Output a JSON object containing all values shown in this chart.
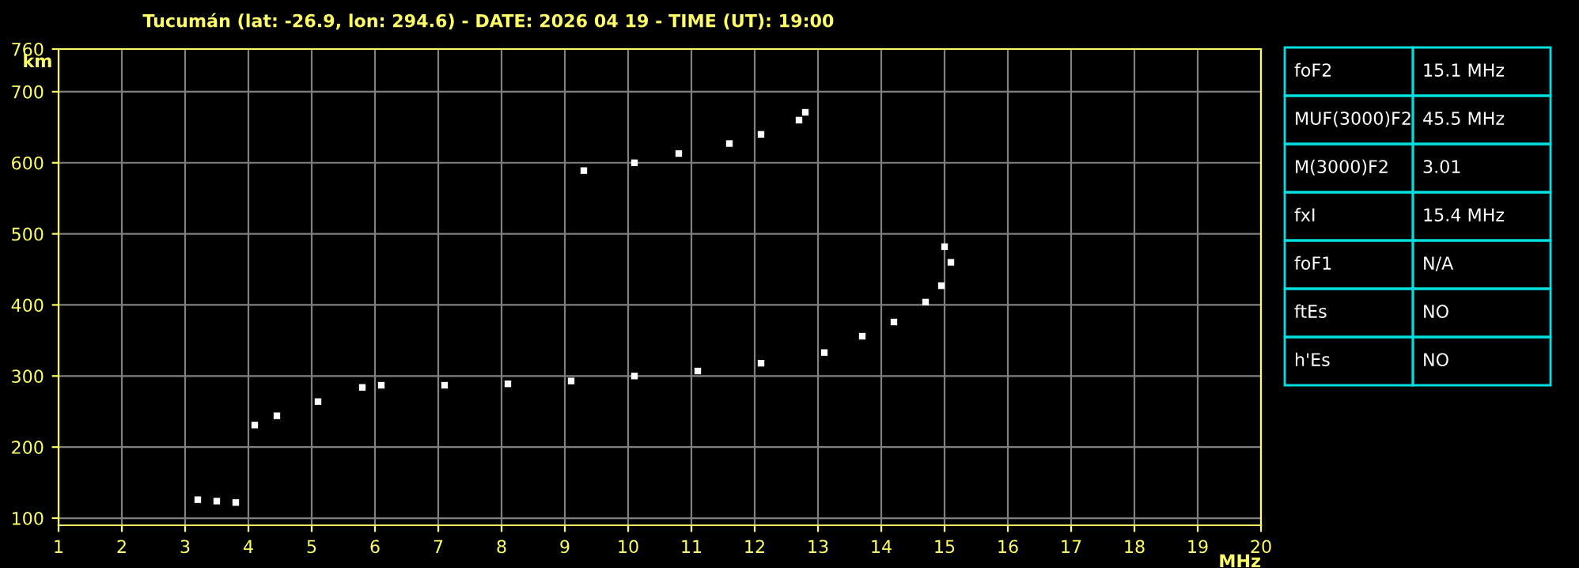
{
  "chart_data": {
    "type": "scatter",
    "title": "Tucumán (lat: -26.9, lon: 294.6) - DATE: 2026 04 19 - TIME (UT): 19:00",
    "xlabel": "MHz",
    "ylabel": "km",
    "xlim": [
      1,
      20
    ],
    "xticks": [
      1,
      2,
      3,
      4,
      5,
      6,
      7,
      8,
      9,
      10,
      11,
      12,
      13,
      14,
      15,
      16,
      17,
      18,
      19,
      20
    ],
    "ylim": [
      90,
      760
    ],
    "yticks": [
      100,
      200,
      300,
      400,
      500,
      600,
      700,
      760
    ],
    "grid": true,
    "marker": "square",
    "legend": false,
    "series": [
      {
        "color": "#ffffff",
        "x": [
          3.2,
          3.5,
          3.8,
          4.1,
          4.45,
          5.1,
          5.8,
          6.1,
          7.1,
          8.1,
          9.1,
          10.1,
          11.1,
          12.1,
          13.1,
          13.7,
          14.2,
          14.7,
          14.95,
          15.1,
          15.0
        ],
        "values": [
          126,
          124,
          122,
          231,
          244,
          264,
          284,
          287,
          287,
          289,
          293,
          300,
          307,
          318,
          333,
          356,
          376,
          404,
          427,
          460,
          482
        ]
      },
      {
        "color": "#ffffff",
        "x": [
          9.3,
          10.1,
          10.8,
          11.6,
          12.1,
          12.7,
          12.8
        ],
        "values": [
          589,
          600,
          613,
          627,
          640,
          660,
          671
        ]
      }
    ],
    "annotations": [
      "foF2",
      "15.1 MHz",
      "MUF(3000)F2",
      "45.5 MHz",
      "M(3000)F2",
      "3.01",
      "fxI",
      "15.4 MHz",
      "foF1",
      "N/A",
      "ftEs",
      "NO",
      "h'Es",
      "NO"
    ]
  }
}
